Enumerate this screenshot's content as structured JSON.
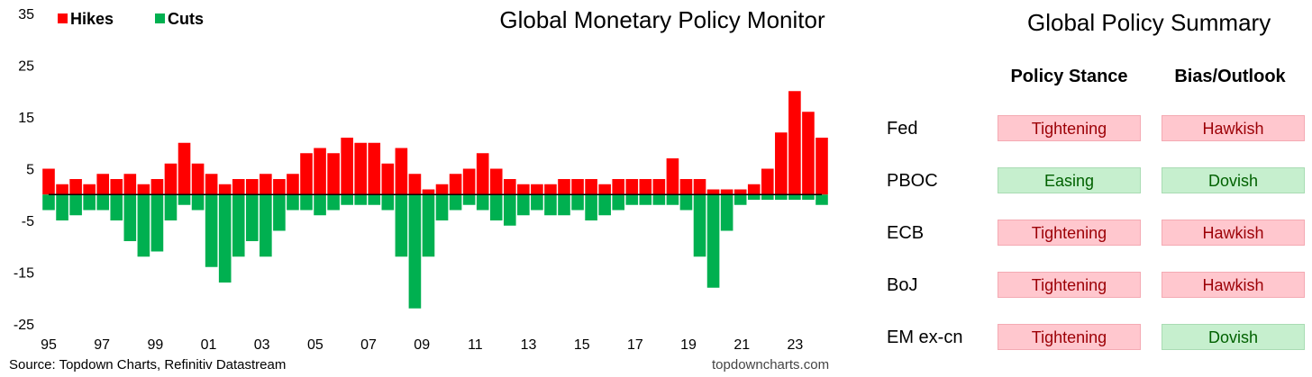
{
  "chart_data": {
    "type": "bar",
    "title": "Global Monetary Policy Monitor",
    "legend_position": "top-left",
    "ylim": [
      -25,
      35
    ],
    "y_ticks": [
      35,
      25,
      15,
      5,
      -5,
      -15,
      -25
    ],
    "x_ticks": [
      "95",
      "97",
      "99",
      "01",
      "03",
      "05",
      "07",
      "09",
      "11",
      "13",
      "15",
      "17",
      "19",
      "21",
      "23"
    ],
    "x_range": [
      1995.0,
      2023.5
    ],
    "series": [
      {
        "name": "Hikes",
        "color": "#ff0000",
        "x": [
          1995.0,
          1995.5,
          1996.0,
          1996.5,
          1997.0,
          1997.5,
          1998.0,
          1998.5,
          1999.0,
          1999.5,
          2000.0,
          2000.5,
          2001.0,
          2001.5,
          2002.0,
          2002.5,
          2003.0,
          2003.5,
          2004.0,
          2004.5,
          2005.0,
          2005.5,
          2006.0,
          2006.5,
          2007.0,
          2007.5,
          2008.0,
          2008.5,
          2009.0,
          2009.5,
          2010.0,
          2010.5,
          2011.0,
          2011.5,
          2012.0,
          2012.5,
          2013.0,
          2013.5,
          2014.0,
          2014.5,
          2015.0,
          2015.5,
          2016.0,
          2016.5,
          2017.0,
          2017.5,
          2018.0,
          2018.5,
          2019.0,
          2019.5,
          2020.0,
          2020.5,
          2021.0,
          2021.5,
          2022.0,
          2022.5,
          2023.0,
          2023.5
        ],
        "values": [
          5,
          2,
          3,
          2,
          4,
          3,
          4,
          2,
          3,
          6,
          10,
          6,
          4,
          2,
          3,
          3,
          4,
          3,
          4,
          8,
          9,
          8,
          11,
          10,
          10,
          6,
          9,
          4,
          1,
          2,
          4,
          5,
          8,
          5,
          3,
          2,
          2,
          2,
          3,
          3,
          3,
          2,
          3,
          3,
          3,
          3,
          7,
          3,
          3,
          1,
          1,
          1,
          2,
          5,
          12,
          20,
          16,
          11
        ]
      },
      {
        "name": "Cuts",
        "color": "#00b050",
        "x": [
          1995.0,
          1995.5,
          1996.0,
          1996.5,
          1997.0,
          1997.5,
          1998.0,
          1998.5,
          1999.0,
          1999.5,
          2000.0,
          2000.5,
          2001.0,
          2001.5,
          2002.0,
          2002.5,
          2003.0,
          2003.5,
          2004.0,
          2004.5,
          2005.0,
          2005.5,
          2006.0,
          2006.5,
          2007.0,
          2007.5,
          2008.0,
          2008.5,
          2009.0,
          2009.5,
          2010.0,
          2010.5,
          2011.0,
          2011.5,
          2012.0,
          2012.5,
          2013.0,
          2013.5,
          2014.0,
          2014.5,
          2015.0,
          2015.5,
          2016.0,
          2016.5,
          2017.0,
          2017.5,
          2018.0,
          2018.5,
          2019.0,
          2019.5,
          2020.0,
          2020.5,
          2021.0,
          2021.5,
          2022.0,
          2022.5,
          2023.0,
          2023.5
        ],
        "values": [
          -3,
          -5,
          -4,
          -3,
          -3,
          -5,
          -9,
          -12,
          -11,
          -5,
          -2,
          -3,
          -14,
          -17,
          -12,
          -9,
          -12,
          -7,
          -3,
          -3,
          -4,
          -3,
          -2,
          -2,
          -2,
          -3,
          -12,
          -22,
          -12,
          -5,
          -3,
          -2,
          -3,
          -5,
          -6,
          -4,
          -3,
          -4,
          -4,
          -3,
          -5,
          -4,
          -3,
          -2,
          -2,
          -2,
          -2,
          -3,
          -12,
          -18,
          -7,
          -2,
          -1,
          -1,
          -1,
          -1,
          -1,
          -2
        ]
      }
    ],
    "source": "Source: Topdown Charts, Refinitiv Datastream",
    "watermark": "topdowncharts.com"
  },
  "summary": {
    "title": "Global Policy Summary",
    "columns": [
      "Policy Stance",
      "Bias/Outlook"
    ],
    "rows": [
      {
        "label": "Fed",
        "stance": "Tightening",
        "stance_tone": "negative",
        "bias": "Hawkish",
        "bias_tone": "negative"
      },
      {
        "label": "PBOC",
        "stance": "Easing",
        "stance_tone": "positive",
        "bias": "Dovish",
        "bias_tone": "positive"
      },
      {
        "label": "ECB",
        "stance": "Tightening",
        "stance_tone": "negative",
        "bias": "Hawkish",
        "bias_tone": "negative"
      },
      {
        "label": "BoJ",
        "stance": "Tightening",
        "stance_tone": "negative",
        "bias": "Hawkish",
        "bias_tone": "negative"
      },
      {
        "label": "EM ex-cn",
        "stance": "Tightening",
        "stance_tone": "negative",
        "bias": "Dovish",
        "bias_tone": "positive"
      }
    ]
  }
}
